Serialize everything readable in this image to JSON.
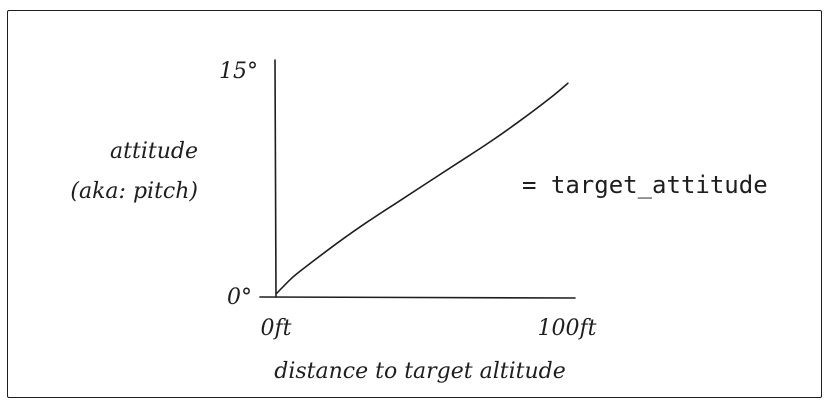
{
  "chart_data": {
    "type": "line",
    "xlabel": "distance to target altitude",
    "ylabel": [
      "attitude",
      "(aka: pitch)"
    ],
    "x_ticks": [
      "0ft",
      "100ft"
    ],
    "y_ticks": [
      "15°",
      "0°"
    ],
    "xlim": [
      0,
      100
    ],
    "ylim": [
      0,
      15
    ],
    "series": [
      {
        "x": [
          0,
          5,
          10,
          20,
          30,
          40,
          50,
          60,
          70,
          80,
          90,
          96
        ],
        "y": [
          0,
          1.0,
          1.8,
          3.3,
          4.7,
          6.0,
          7.3,
          8.6,
          9.9,
          11.3,
          12.8,
          13.8
        ]
      }
    ],
    "annotation": "= target_attitude",
    "grid": false,
    "stroke_color": "#1e1e1e"
  }
}
